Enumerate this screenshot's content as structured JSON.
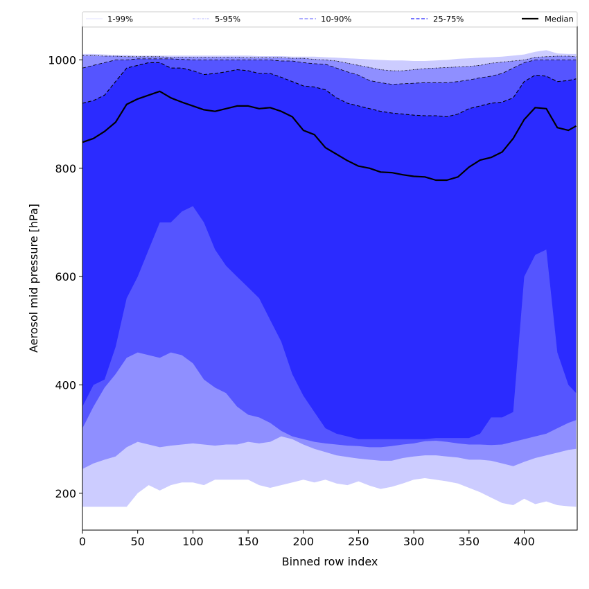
{
  "chart_data": {
    "type": "area",
    "title": "",
    "xlabel": "Binned row index",
    "ylabel": "Aerosol mid pressure [hPa]",
    "xlim": [
      0,
      448
    ],
    "ylim": [
      132,
      1062
    ],
    "xticks": [
      0,
      50,
      100,
      150,
      200,
      250,
      300,
      350,
      400
    ],
    "yticks": [
      200,
      400,
      600,
      800,
      1000
    ],
    "grid": false,
    "legend": {
      "placement": "top",
      "entries": [
        {
          "label": "1-99%",
          "color": "#ccccff",
          "style": "solid"
        },
        {
          "label": "5-95%",
          "color": "#9090ff",
          "style": "dashdot"
        },
        {
          "label": "10-90%",
          "color": "#7070ff",
          "style": "dashed"
        },
        {
          "label": "25-75%",
          "color": "#4a4aff",
          "style": "dashed"
        },
        {
          "label": "Median",
          "color": "#000000",
          "style": "solid"
        }
      ]
    },
    "band_colors": [
      "#ccccff",
      "#8f8fff",
      "#5555ff",
      "#2b2bff"
    ],
    "x": [
      0,
      10,
      20,
      30,
      40,
      50,
      60,
      70,
      80,
      90,
      100,
      110,
      120,
      130,
      140,
      150,
      160,
      170,
      180,
      190,
      200,
      210,
      220,
      230,
      240,
      250,
      260,
      270,
      280,
      290,
      300,
      310,
      320,
      330,
      340,
      350,
      360,
      370,
      380,
      390,
      400,
      410,
      420,
      430,
      440,
      447
    ],
    "series": [
      {
        "name": "1-99%",
        "role": "lower",
        "values": [
          175,
          175,
          175,
          175,
          175,
          200,
          215,
          205,
          215,
          220,
          220,
          215,
          225,
          225,
          225,
          225,
          215,
          210,
          215,
          220,
          225,
          220,
          225,
          218,
          215,
          222,
          214,
          208,
          212,
          218,
          225,
          228,
          225,
          222,
          218,
          210,
          202,
          192,
          182,
          178,
          190,
          180,
          185,
          178,
          176,
          175
        ]
      },
      {
        "name": "5-95%",
        "role": "lower",
        "values": [
          245,
          255,
          262,
          268,
          285,
          295,
          290,
          285,
          288,
          290,
          292,
          290,
          288,
          290,
          290,
          295,
          292,
          295,
          305,
          300,
          290,
          282,
          276,
          270,
          267,
          264,
          262,
          260,
          260,
          265,
          268,
          270,
          270,
          268,
          266,
          262,
          262,
          260,
          255,
          250,
          258,
          265,
          270,
          275,
          280,
          282
        ]
      },
      {
        "name": "10-90%",
        "role": "lower",
        "values": [
          320,
          360,
          395,
          420,
          450,
          460,
          455,
          450,
          460,
          455,
          440,
          410,
          395,
          385,
          360,
          345,
          340,
          330,
          315,
          305,
          300,
          295,
          292,
          290,
          288,
          287,
          285,
          285,
          287,
          290,
          292,
          296,
          297,
          295,
          292,
          290,
          290,
          289,
          290,
          295,
          300,
          305,
          310,
          320,
          330,
          335
        ]
      },
      {
        "name": "25-75%",
        "role": "lower",
        "values": [
          360,
          400,
          410,
          470,
          560,
          600,
          650,
          700,
          700,
          720,
          730,
          700,
          650,
          620,
          600,
          580,
          560,
          520,
          480,
          420,
          380,
          350,
          320,
          310,
          305,
          300,
          300,
          300,
          300,
          300,
          300,
          300,
          302,
          302,
          302,
          302,
          310,
          340,
          340,
          350,
          600,
          640,
          650,
          460,
          400,
          385
        ]
      },
      {
        "name": "Median",
        "values": [
          848,
          855,
          868,
          885,
          918,
          928,
          935,
          942,
          930,
          922,
          915,
          908,
          905,
          910,
          915,
          915,
          910,
          912,
          905,
          895,
          870,
          862,
          838,
          826,
          814,
          804,
          800,
          793,
          792,
          788,
          785,
          784,
          778,
          778,
          784,
          802,
          815,
          820,
          830,
          855,
          890,
          912,
          910,
          875,
          870,
          878
        ]
      },
      {
        "name": "25-75%",
        "role": "upper",
        "values": [
          920,
          925,
          935,
          960,
          985,
          990,
          995,
          995,
          985,
          985,
          980,
          973,
          975,
          978,
          982,
          980,
          975,
          975,
          968,
          960,
          952,
          950,
          945,
          930,
          920,
          915,
          910,
          905,
          902,
          900,
          898,
          897,
          897,
          895,
          900,
          910,
          915,
          920,
          922,
          930,
          960,
          972,
          970,
          960,
          962,
          965
        ]
      },
      {
        "name": "10-90%",
        "role": "upper",
        "values": [
          985,
          990,
          995,
          1000,
          1000,
          1002,
          1002,
          1002,
          1002,
          1001,
          1000,
          1000,
          1000,
          1000,
          1000,
          1000,
          1000,
          1000,
          998,
          998,
          995,
          993,
          992,
          985,
          978,
          972,
          962,
          958,
          955,
          956,
          957,
          958,
          958,
          958,
          960,
          963,
          967,
          970,
          975,
          985,
          995,
          1000,
          1000,
          1000,
          1000,
          1000
        ]
      },
      {
        "name": "5-95%",
        "role": "upper",
        "values": [
          1008,
          1008,
          1007,
          1007,
          1006,
          1006,
          1006,
          1006,
          1005,
          1005,
          1005,
          1005,
          1005,
          1005,
          1005,
          1004,
          1004,
          1004,
          1004,
          1003,
          1003,
          1001,
          1000,
          998,
          994,
          990,
          986,
          982,
          980,
          980,
          982,
          984,
          985,
          986,
          987,
          988,
          990,
          994,
          996,
          998,
          1000,
          1005,
          1006,
          1007,
          1007,
          1006
        ]
      },
      {
        "name": "1-99%",
        "role": "upper",
        "values": [
          1011,
          1011,
          1010,
          1009,
          1009,
          1008,
          1008,
          1008,
          1008,
          1008,
          1008,
          1008,
          1008,
          1008,
          1008,
          1008,
          1007,
          1007,
          1007,
          1006,
          1006,
          1006,
          1005,
          1004,
          1003,
          1002,
          1001,
          1000,
          999,
          999,
          998,
          998,
          999,
          1000,
          1002,
          1003,
          1004,
          1005,
          1006,
          1008,
          1010,
          1015,
          1018,
          1012,
          1011,
          1011
        ]
      }
    ]
  }
}
